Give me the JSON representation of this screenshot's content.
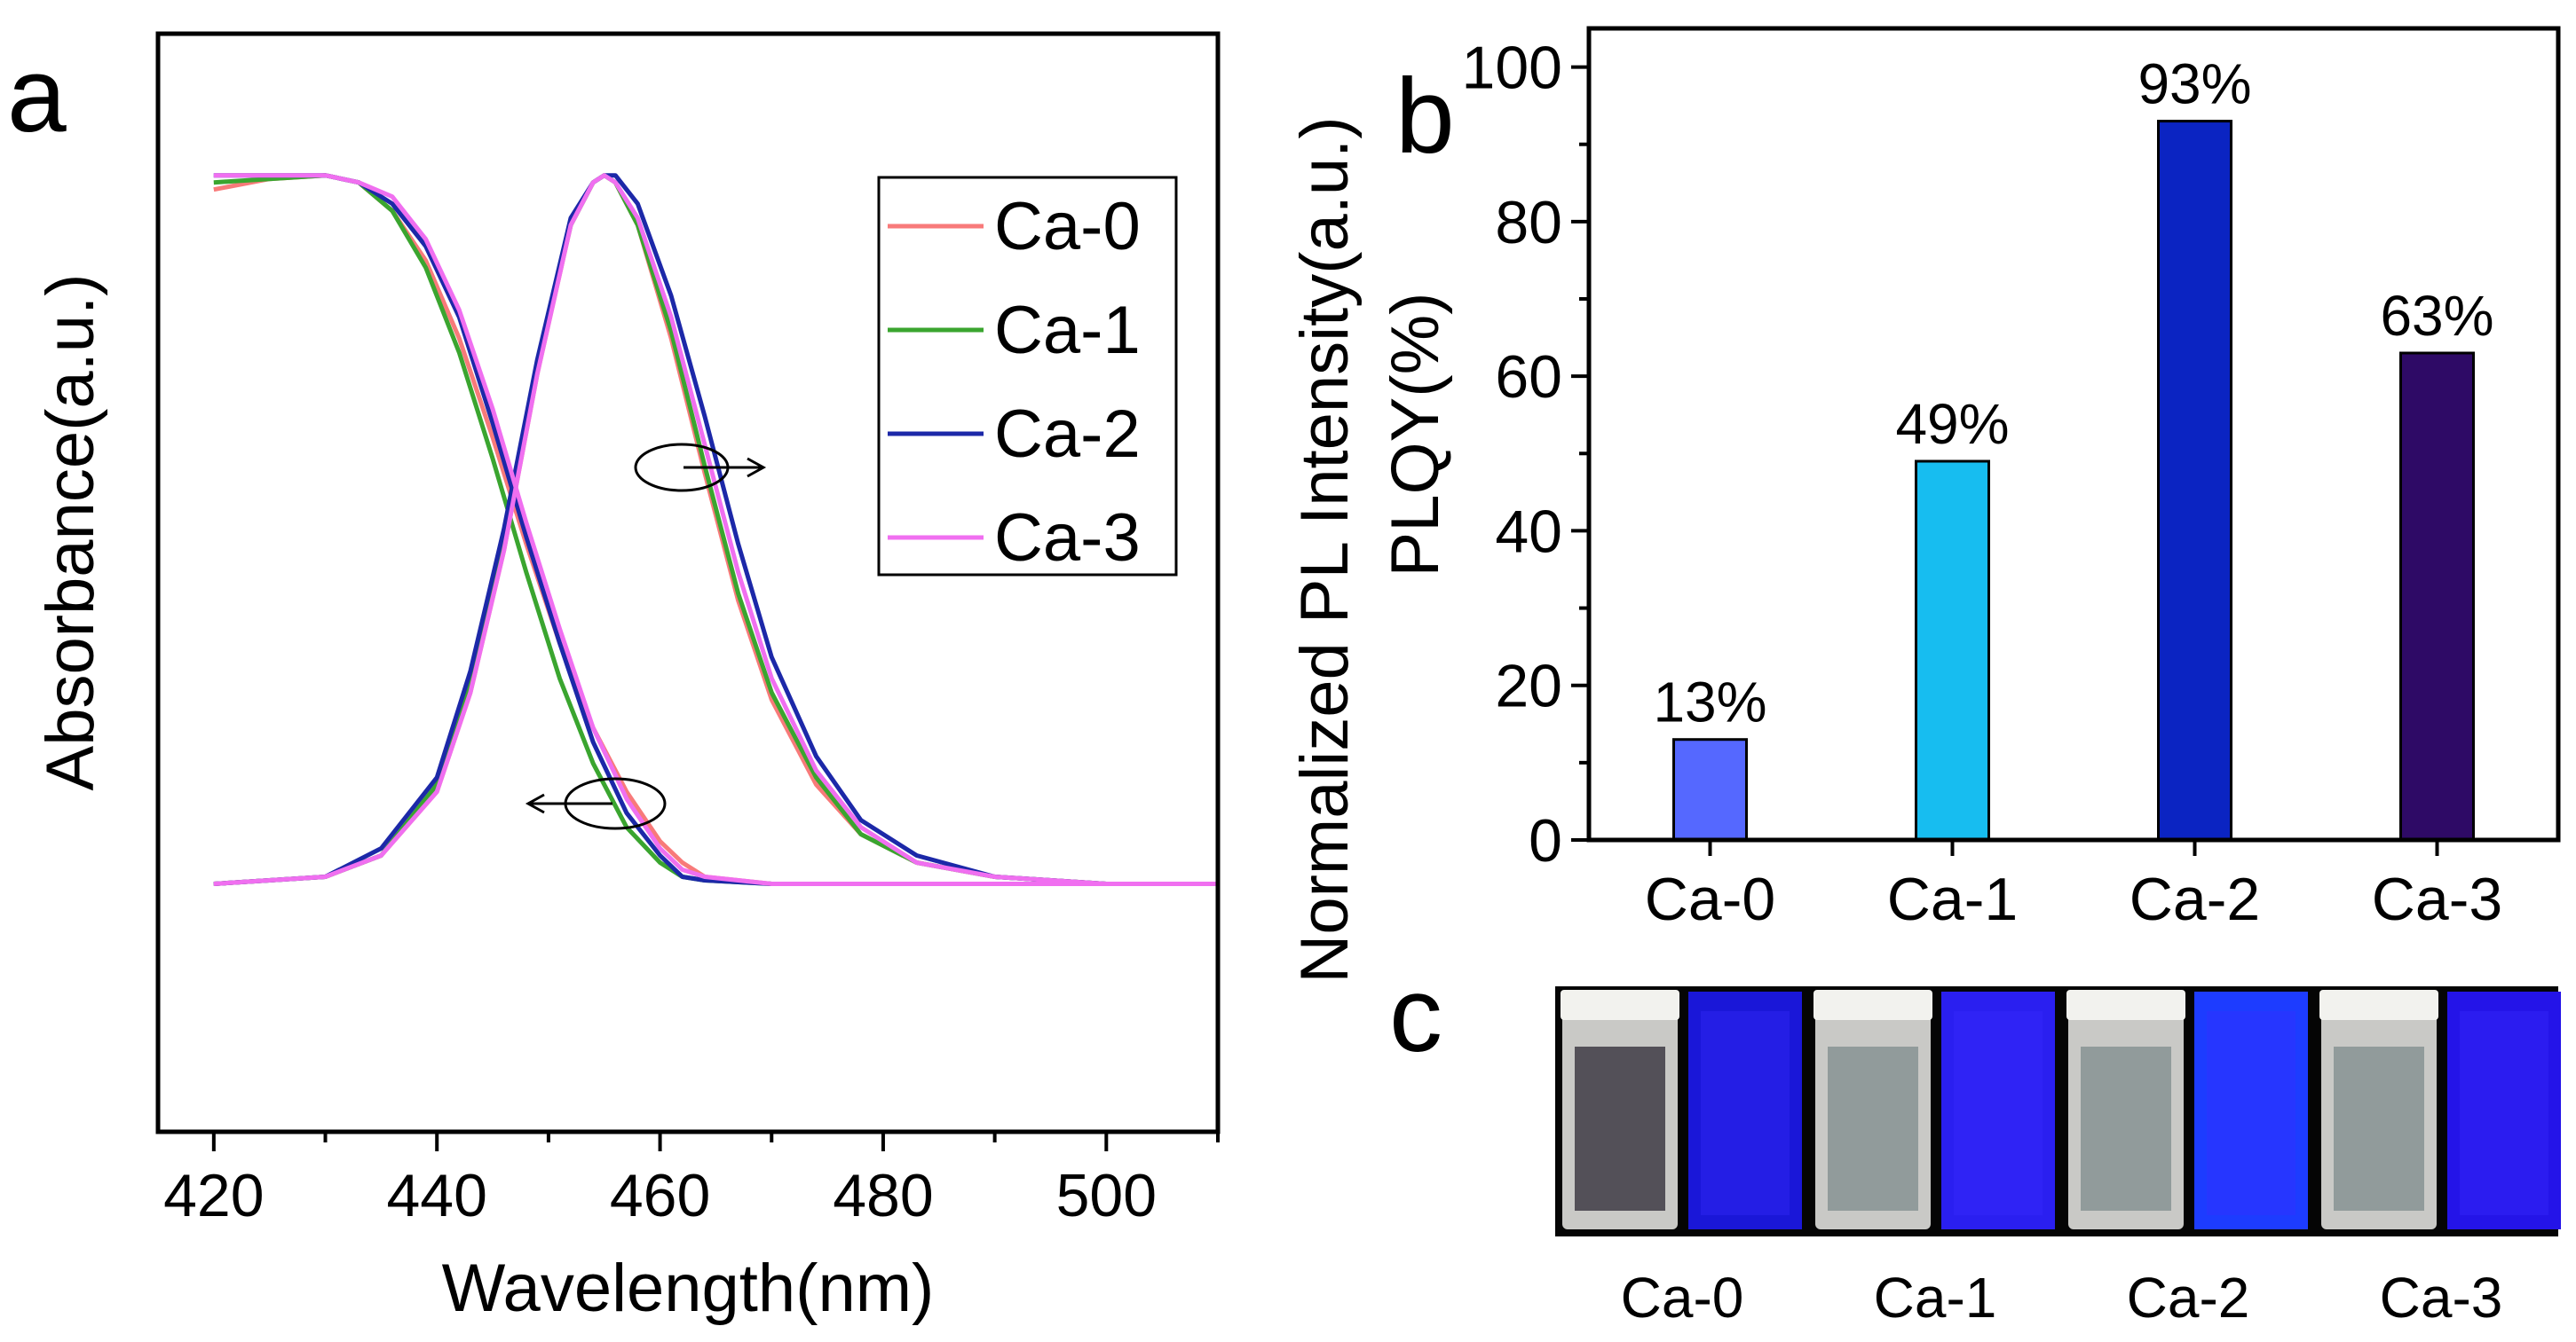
{
  "chart_data": [
    {
      "panel": "a",
      "type": "line",
      "xlabel": "Wavelength(nm)",
      "ylabel_left": "Absorbance(a.u.)",
      "ylabel_right": "Normalized PL Intensity(a.u.)",
      "xlim": [
        415,
        510
      ],
      "ylim": [
        -0.35,
        1.2
      ],
      "xticks": [
        420,
        440,
        460,
        480,
        500
      ],
      "legend_position": "top-right",
      "annotations": [
        "absorbance curves -> left axis",
        "PL curves -> right axis"
      ],
      "series": [
        {
          "name": "Ca-0",
          "color": "#f87a7a",
          "absorbance": {
            "x": [
              420,
              425,
              430,
              433,
              436,
              439,
              442,
              445,
              448,
              451,
              454,
              457,
              460,
              462,
              464,
              467,
              470,
              480,
              490,
              500,
              510
            ],
            "y": [
              0.98,
              0.995,
              1.0,
              0.99,
              0.95,
              0.88,
              0.77,
              0.63,
              0.48,
              0.34,
              0.22,
              0.13,
              0.06,
              0.03,
              0.01,
              0.005,
              0.0,
              0.0,
              0.0,
              0.0,
              0.0
            ]
          },
          "pl": {
            "x": [
              420,
              430,
              435,
              440,
              443,
              446,
              449,
              452,
              454,
              455,
              456,
              458,
              461,
              464,
              467,
              470,
              474,
              478,
              483,
              490,
              500,
              510
            ],
            "y": [
              0.0,
              0.01,
              0.04,
              0.13,
              0.27,
              0.47,
              0.72,
              0.93,
              0.99,
              1.0,
              0.99,
              0.93,
              0.77,
              0.58,
              0.4,
              0.26,
              0.14,
              0.07,
              0.03,
              0.01,
              0.0,
              0.0
            ]
          }
        },
        {
          "name": "Ca-1",
          "color": "#3aa52f",
          "absorbance": {
            "x": [
              420,
              425,
              430,
              433,
              436,
              439,
              442,
              445,
              448,
              451,
              454,
              457,
              460,
              462,
              464,
              470,
              480,
              490,
              500,
              510
            ],
            "y": [
              0.99,
              0.995,
              1.0,
              0.99,
              0.95,
              0.87,
              0.75,
              0.6,
              0.44,
              0.29,
              0.17,
              0.08,
              0.03,
              0.01,
              0.005,
              0.0,
              0.0,
              0.0,
              0.0,
              0.0
            ]
          },
          "pl": {
            "x": [
              420,
              430,
              435,
              440,
              443,
              446,
              449,
              452,
              454,
              455,
              456,
              458,
              461,
              464,
              467,
              470,
              474,
              478,
              483,
              490,
              500,
              510
            ],
            "y": [
              0.0,
              0.01,
              0.04,
              0.14,
              0.28,
              0.48,
              0.73,
              0.93,
              0.99,
              1.0,
              0.99,
              0.93,
              0.78,
              0.59,
              0.41,
              0.27,
              0.15,
              0.07,
              0.03,
              0.01,
              0.0,
              0.0
            ]
          }
        },
        {
          "name": "Ca-2",
          "color": "#1c28a8",
          "absorbance": {
            "x": [
              420,
              425,
              430,
              433,
              436,
              439,
              442,
              445,
              448,
              451,
              454,
              457,
              460,
              462,
              464,
              470,
              480,
              490,
              500,
              510
            ],
            "y": [
              1.0,
              1.0,
              1.0,
              0.99,
              0.96,
              0.9,
              0.8,
              0.65,
              0.49,
              0.34,
              0.2,
              0.1,
              0.04,
              0.01,
              0.005,
              0.0,
              0.0,
              0.0,
              0.0,
              0.0
            ]
          },
          "pl": {
            "x": [
              420,
              430,
              435,
              440,
              443,
              446,
              449,
              452,
              454,
              455,
              456,
              458,
              461,
              464,
              467,
              470,
              474,
              478,
              483,
              490,
              500,
              510
            ],
            "y": [
              0.0,
              0.01,
              0.05,
              0.15,
              0.3,
              0.5,
              0.74,
              0.94,
              0.99,
              1.0,
              1.0,
              0.96,
              0.83,
              0.66,
              0.48,
              0.32,
              0.18,
              0.09,
              0.04,
              0.01,
              0.0,
              0.0
            ]
          }
        },
        {
          "name": "Ca-3",
          "color": "#f06ff0",
          "absorbance": {
            "x": [
              420,
              425,
              430,
              433,
              436,
              439,
              442,
              445,
              448,
              451,
              454,
              457,
              460,
              462,
              464,
              470,
              480,
              490,
              500,
              510
            ],
            "y": [
              1.0,
              1.0,
              1.0,
              0.99,
              0.97,
              0.91,
              0.81,
              0.67,
              0.51,
              0.36,
              0.22,
              0.12,
              0.05,
              0.02,
              0.01,
              0.0,
              0.0,
              0.0,
              0.0,
              0.0
            ]
          },
          "pl": {
            "x": [
              420,
              430,
              435,
              440,
              443,
              446,
              449,
              452,
              454,
              455,
              456,
              458,
              461,
              464,
              467,
              470,
              474,
              478,
              483,
              490,
              500,
              510
            ],
            "y": [
              0.0,
              0.01,
              0.04,
              0.13,
              0.27,
              0.47,
              0.72,
              0.93,
              0.99,
              1.0,
              0.99,
              0.94,
              0.8,
              0.62,
              0.44,
              0.29,
              0.16,
              0.08,
              0.03,
              0.01,
              0.0,
              0.0
            ]
          }
        }
      ]
    },
    {
      "panel": "b",
      "type": "bar",
      "ylabel": "PLQY(%)",
      "categories": [
        "Ca-0",
        "Ca-1",
        "Ca-2",
        "Ca-3"
      ],
      "values": [
        13,
        49,
        93,
        63
      ],
      "value_labels": [
        "13%",
        "49%",
        "93%",
        "63%"
      ],
      "colors": [
        "#5568ff",
        "#17bdf0",
        "#0b24c2",
        "#2e0a66"
      ],
      "ylim": [
        0,
        105
      ],
      "yticks": [
        0,
        20,
        40,
        60,
        80,
        100
      ]
    }
  ],
  "panel_c": {
    "letter": "c",
    "labels": [
      "Ca-0",
      "Ca-1",
      "Ca-2",
      "Ca-3"
    ],
    "uv_glow_colors": [
      "#1a17d8",
      "#2a1ff0",
      "#1d3cff",
      "#2414e8"
    ]
  }
}
